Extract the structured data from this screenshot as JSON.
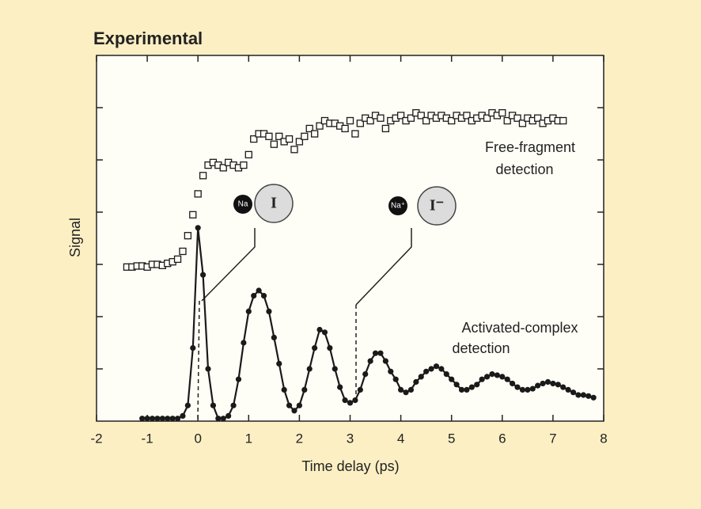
{
  "chart_data": {
    "type": "scatter",
    "title": "Experimental",
    "ylabel": "Signal",
    "xlabel": "Time delay (ps)",
    "xlim": [
      -2,
      8
    ],
    "xticks": [
      -2,
      -1,
      0,
      1,
      2,
      3,
      4,
      5,
      6,
      7,
      8
    ],
    "ylim": [
      0,
      7
    ],
    "yticks": [
      1,
      2,
      3,
      4,
      5,
      6
    ],
    "annotations": [
      "Free-fragment",
      "detection",
      "Activated-complex",
      "detection"
    ],
    "atoms": [
      "Na",
      "I",
      "Na⁺",
      "I⁻"
    ],
    "series": [
      {
        "color": "#1a1a1a",
        "marker": "square",
        "line": false,
        "x": [
          -1.4,
          -1.3,
          -1.2,
          -1.1,
          -1.0,
          -0.9,
          -0.8,
          -0.7,
          -0.6,
          -0.5,
          -0.4,
          -0.3,
          -0.2,
          -0.1,
          0.0,
          0.1,
          0.2,
          0.3,
          0.4,
          0.5,
          0.6,
          0.7,
          0.8,
          0.9,
          1.0,
          1.1,
          1.2,
          1.3,
          1.4,
          1.5,
          1.6,
          1.7,
          1.8,
          1.9,
          2.0,
          2.1,
          2.2,
          2.3,
          2.4,
          2.5,
          2.6,
          2.7,
          2.8,
          2.9,
          3.0,
          3.1,
          3.2,
          3.3,
          3.4,
          3.5,
          3.6,
          3.7,
          3.8,
          3.9,
          4.0,
          4.1,
          4.2,
          4.3,
          4.4,
          4.5,
          4.6,
          4.7,
          4.8,
          4.9,
          5.0,
          5.1,
          5.2,
          5.3,
          5.4,
          5.5,
          5.6,
          5.7,
          5.8,
          5.9,
          6.0,
          6.1,
          6.2,
          6.3,
          6.4,
          6.5,
          6.6,
          6.7,
          6.8,
          6.9,
          7.0,
          7.1,
          7.2
        ],
        "values": [
          2.95,
          2.95,
          2.97,
          2.97,
          2.95,
          3.0,
          3.0,
          2.98,
          3.02,
          3.05,
          3.1,
          3.25,
          3.55,
          3.95,
          4.35,
          4.7,
          4.9,
          4.95,
          4.9,
          4.85,
          4.95,
          4.9,
          4.85,
          4.9,
          5.1,
          5.4,
          5.5,
          5.5,
          5.45,
          5.3,
          5.45,
          5.35,
          5.4,
          5.2,
          5.35,
          5.45,
          5.6,
          5.5,
          5.65,
          5.75,
          5.7,
          5.7,
          5.65,
          5.6,
          5.75,
          5.5,
          5.7,
          5.8,
          5.75,
          5.85,
          5.8,
          5.6,
          5.75,
          5.8,
          5.85,
          5.75,
          5.8,
          5.9,
          5.85,
          5.75,
          5.85,
          5.8,
          5.85,
          5.8,
          5.75,
          5.85,
          5.8,
          5.85,
          5.75,
          5.8,
          5.85,
          5.8,
          5.9,
          5.85,
          5.9,
          5.75,
          5.85,
          5.8,
          5.7,
          5.8,
          5.75,
          5.8,
          5.7,
          5.75,
          5.8,
          5.75,
          5.75
        ]
      },
      {
        "color": "#1a1a1a",
        "marker": "circle",
        "line": true,
        "x": [
          -1.1,
          -1.0,
          -0.9,
          -0.8,
          -0.7,
          -0.6,
          -0.5,
          -0.4,
          -0.3,
          -0.2,
          -0.1,
          0.0,
          0.1,
          0.2,
          0.3,
          0.4,
          0.5,
          0.6,
          0.7,
          0.8,
          0.9,
          1.0,
          1.1,
          1.2,
          1.3,
          1.4,
          1.5,
          1.6,
          1.7,
          1.8,
          1.9,
          2.0,
          2.1,
          2.2,
          2.3,
          2.4,
          2.5,
          2.6,
          2.7,
          2.8,
          2.9,
          3.0,
          3.1,
          3.2,
          3.3,
          3.4,
          3.5,
          3.6,
          3.7,
          3.8,
          3.9,
          4.0,
          4.1,
          4.2,
          4.3,
          4.4,
          4.5,
          4.6,
          4.7,
          4.8,
          4.9,
          5.0,
          5.1,
          5.2,
          5.3,
          5.4,
          5.5,
          5.6,
          5.7,
          5.8,
          5.9,
          6.0,
          6.1,
          6.2,
          6.3,
          6.4,
          6.5,
          6.6,
          6.7,
          6.8,
          6.9,
          7.0,
          7.1,
          7.2,
          7.3,
          7.4,
          7.5,
          7.6,
          7.7,
          7.8
        ],
        "values": [
          0.05,
          0.05,
          0.05,
          0.05,
          0.05,
          0.05,
          0.05,
          0.05,
          0.1,
          0.3,
          1.4,
          3.7,
          2.8,
          1.0,
          0.3,
          0.05,
          0.05,
          0.1,
          0.3,
          0.8,
          1.5,
          2.1,
          2.4,
          2.5,
          2.4,
          2.1,
          1.6,
          1.1,
          0.6,
          0.3,
          0.2,
          0.3,
          0.6,
          1.0,
          1.4,
          1.75,
          1.7,
          1.4,
          1.0,
          0.65,
          0.4,
          0.35,
          0.4,
          0.6,
          0.9,
          1.15,
          1.3,
          1.3,
          1.15,
          0.95,
          0.8,
          0.6,
          0.55,
          0.6,
          0.75,
          0.85,
          0.95,
          1.0,
          1.05,
          1.0,
          0.9,
          0.8,
          0.7,
          0.6,
          0.6,
          0.65,
          0.7,
          0.8,
          0.85,
          0.9,
          0.88,
          0.85,
          0.8,
          0.72,
          0.65,
          0.6,
          0.6,
          0.62,
          0.68,
          0.72,
          0.75,
          0.72,
          0.7,
          0.65,
          0.6,
          0.55,
          0.5,
          0.5,
          0.48,
          0.45
        ]
      }
    ]
  }
}
